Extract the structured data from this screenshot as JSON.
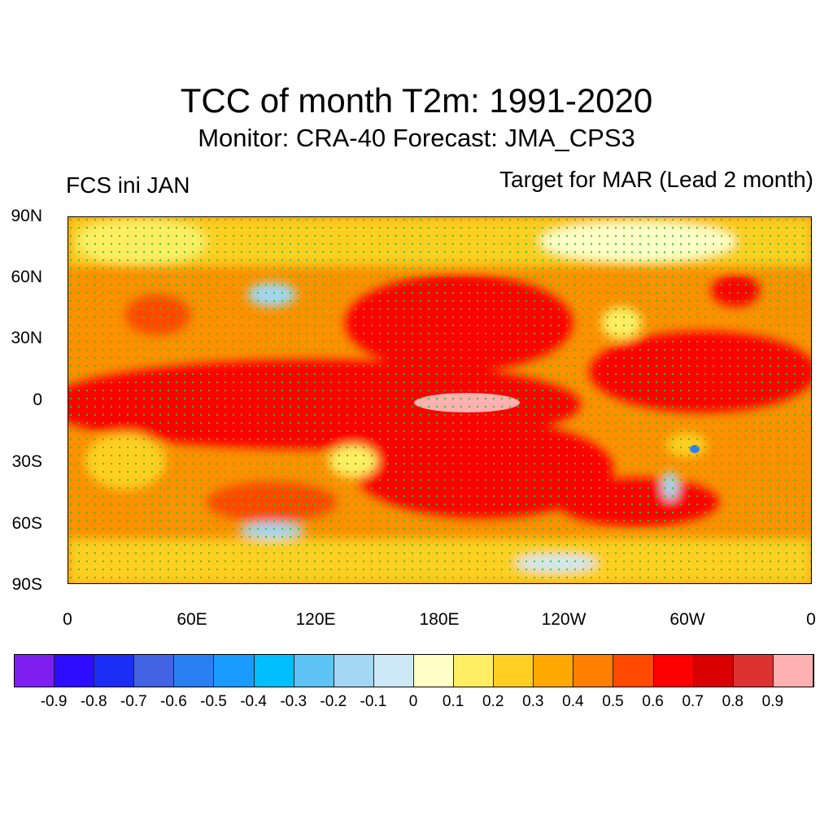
{
  "title": "TCC of month T2m: 1991-2020",
  "subtitle": "Monitor: CRA-40   Forecast: JMA_CPS3",
  "left_string": "FCS ini JAN",
  "right_string": "Target for MAR (Lead 2 month)",
  "lat_labels": [
    "90N",
    "60N",
    "30N",
    "0",
    "30S",
    "60S",
    "90S"
  ],
  "lon_labels": [
    "0",
    "60E",
    "120E",
    "180E",
    "120W",
    "60W",
    "0"
  ],
  "colorbar": {
    "colors": [
      "#7f1fef",
      "#2e0cff",
      "#1a2ef5",
      "#4264e4",
      "#2a80f2",
      "#1a9bff",
      "#00bfff",
      "#5ec4f5",
      "#a2d6f2",
      "#cde9f8",
      "#ffffc8",
      "#ffee64",
      "#ffcf24",
      "#ffa800",
      "#ff7f00",
      "#ff4a00",
      "#ff0000",
      "#d80000",
      "#dc3232",
      "#ffb0b0"
    ],
    "labels": [
      "-0.9",
      "-0.8",
      "-0.7",
      "-0.6",
      "-0.5",
      "-0.4",
      "-0.3",
      "-0.2",
      "-0.1",
      "0",
      "0.1",
      "0.2",
      "0.3",
      "0.4",
      "0.5",
      "0.6",
      "0.7",
      "0.8",
      "0.9"
    ]
  }
}
